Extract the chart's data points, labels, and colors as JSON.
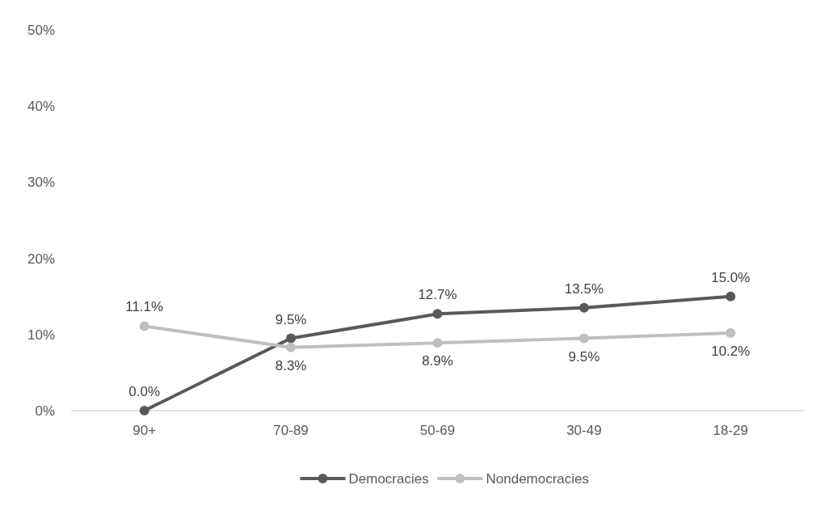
{
  "chart_data": {
    "type": "line",
    "categories": [
      "90+",
      "70-89",
      "50-69",
      "30-49",
      "18-29"
    ],
    "series": [
      {
        "name": "Democracies",
        "color": "#595959",
        "values": [
          0.0,
          9.5,
          12.7,
          13.5,
          15.0
        ],
        "value_labels": [
          "0.0%",
          "9.5%",
          "12.7%",
          "13.5%",
          "15.0%"
        ]
      },
      {
        "name": "Nondemocracies",
        "color": "#bfbfbf",
        "values": [
          11.1,
          8.3,
          8.9,
          9.5,
          10.2
        ],
        "value_labels": [
          "11.1%",
          "8.3%",
          "8.9%",
          "9.5%",
          "10.2%"
        ]
      }
    ],
    "ylim": [
      0,
      50
    ],
    "yticks": [
      {
        "value": 0,
        "label": "0%"
      },
      {
        "value": 10,
        "label": "10%"
      },
      {
        "value": 20,
        "label": "20%"
      },
      {
        "value": 30,
        "label": "30%"
      },
      {
        "value": 40,
        "label": "40%"
      },
      {
        "value": 50,
        "label": "50%"
      }
    ],
    "grid": false,
    "legend": "bottom",
    "marker": "circle",
    "line_style": "solid"
  }
}
